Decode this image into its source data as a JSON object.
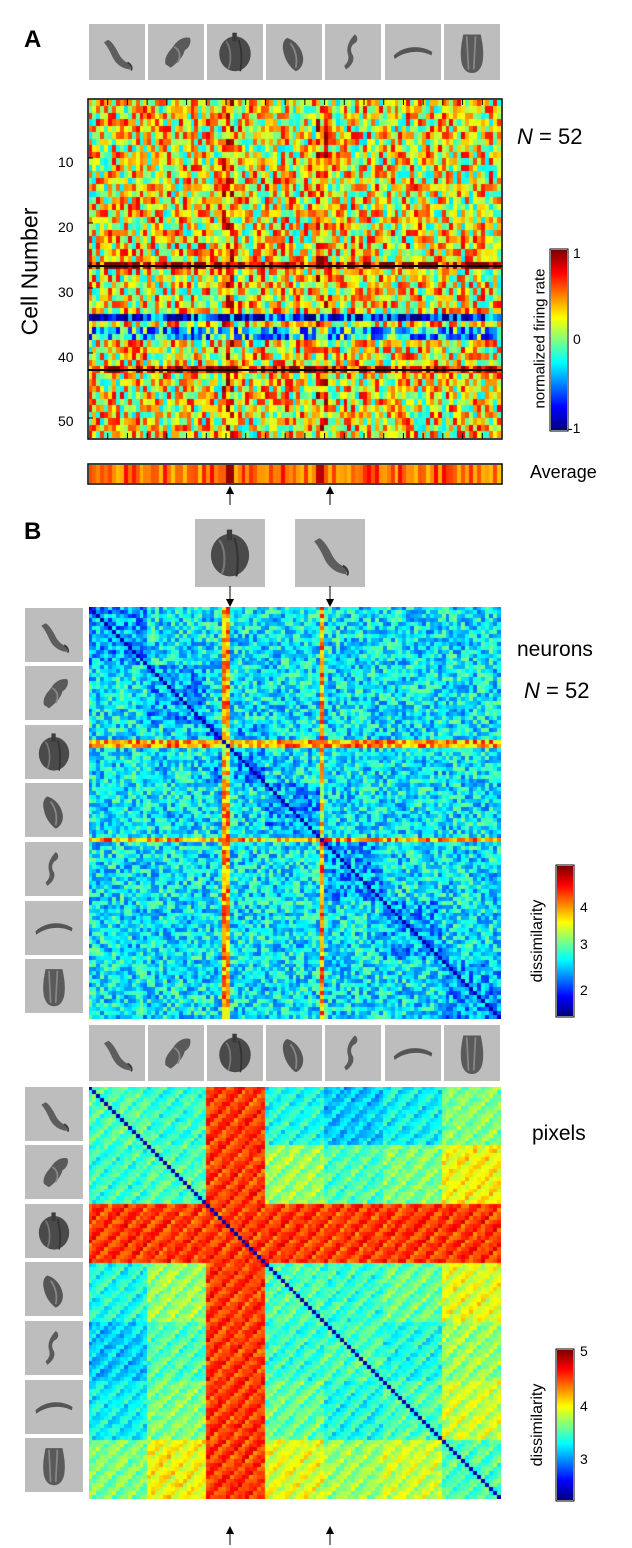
{
  "panel_a": {
    "letter": "A",
    "ylabel": "Cell Number",
    "y_ticks": [
      "10",
      "20",
      "30",
      "40",
      "50"
    ],
    "n_label": {
      "prefix": "N",
      "suffix": " = 52"
    },
    "colorbar_label": "normalized firing rate",
    "colorbar_ticks": [
      "1",
      "0",
      "-1"
    ],
    "average_label": "Average"
  },
  "panel_b": {
    "letter": "B",
    "neurons_label": "neurons",
    "n_label": {
      "prefix": "N",
      "suffix": " = 52"
    },
    "pixels_label": "pixels",
    "colorbar1_label": "dissimilarity",
    "colorbar1_ticks": [
      "4",
      "3",
      "2"
    ],
    "colorbar2_label": "dissimilarity",
    "colorbar2_ticks": [
      "5",
      "4",
      "3"
    ]
  },
  "stimulus_icons": [
    "curved-tube-icon",
    "twisted-shape-icon",
    "pepper-shape-icon",
    "folded-shape-icon",
    "hook-shape-icon",
    "arc-shape-icon",
    "vase-shape-icon"
  ],
  "highlighted_icons": [
    "pepper-shape-icon",
    "curved-tube-icon"
  ],
  "chart_data": [
    {
      "type": "heatmap",
      "name": "firing-rate",
      "rows": 52,
      "columns": 105,
      "colormap": "jet",
      "clim": [
        -1,
        1
      ]
    },
    {
      "type": "heatmap",
      "name": "neurons-dissimilarity",
      "rows": 105,
      "columns": 105,
      "colormap": "jet",
      "clim": [
        1.5,
        4.8
      ]
    },
    {
      "type": "heatmap",
      "name": "pixels-dissimilarity",
      "rows": 105,
      "columns": 105,
      "colormap": "jet",
      "clim": [
        2.2,
        5
      ]
    }
  ]
}
